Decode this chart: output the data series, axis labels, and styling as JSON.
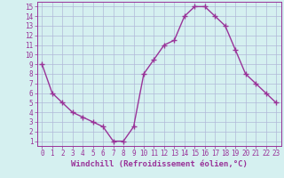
{
  "hours": [
    0,
    1,
    2,
    3,
    4,
    5,
    6,
    7,
    8,
    9,
    10,
    11,
    12,
    13,
    14,
    15,
    16,
    17,
    18,
    19,
    20,
    21,
    22,
    23
  ],
  "values": [
    9,
    6,
    5,
    4,
    3.5,
    3,
    2.5,
    1,
    1,
    2.5,
    8,
    9.5,
    11,
    11.5,
    14,
    15,
    15,
    14,
    13,
    10.5,
    8,
    7,
    6,
    5
  ],
  "line_color": "#993399",
  "marker_color": "#993399",
  "background_color": "#d5f0f0",
  "grid_color": "#b0b8d8",
  "xlabel": "Windchill (Refroidissement éolien,°C)",
  "tick_color": "#993399",
  "ylim": [
    0.5,
    15.5
  ],
  "xlim": [
    -0.5,
    23.5
  ],
  "yticks": [
    1,
    2,
    3,
    4,
    5,
    6,
    7,
    8,
    9,
    10,
    11,
    12,
    13,
    14,
    15
  ],
  "xticks": [
    0,
    1,
    2,
    3,
    4,
    5,
    6,
    7,
    8,
    9,
    10,
    11,
    12,
    13,
    14,
    15,
    16,
    17,
    18,
    19,
    20,
    21,
    22,
    23
  ],
  "font_family": "monospace",
  "tick_fontsize": 5.5,
  "xlabel_fontsize": 6.5
}
